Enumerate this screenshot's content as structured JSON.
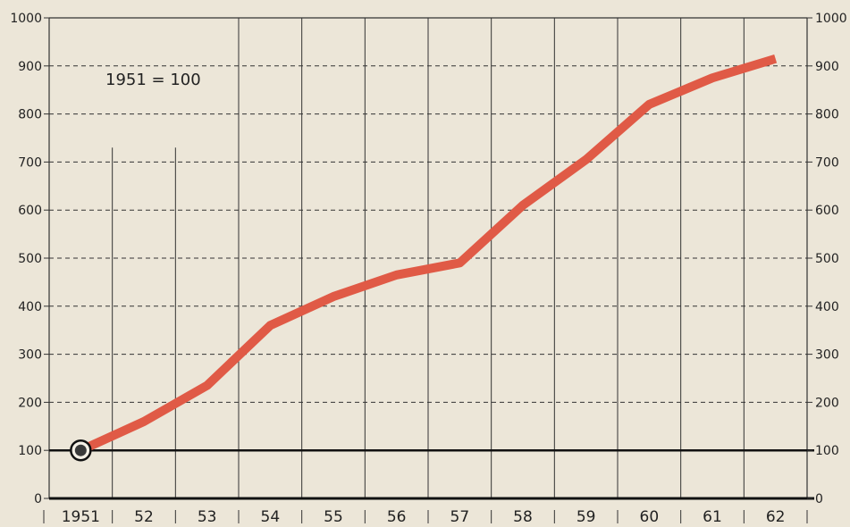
{
  "chart_data": {
    "type": "line",
    "annotation": "1951 = 100",
    "categories": [
      "1951",
      "52",
      "53",
      "54",
      "55",
      "56",
      "57",
      "58",
      "59",
      "60",
      "61",
      "62"
    ],
    "series": [
      {
        "values": [
          100,
          160,
          235,
          360,
          420,
          465,
          490,
          610,
          705,
          820,
          875,
          915
        ]
      }
    ],
    "y_ticks_left": [
      "0",
      "100",
      "200",
      "300",
      "400",
      "500",
      "600",
      "700",
      "800",
      "900",
      "1000"
    ],
    "y_ticks_right": [
      "0",
      "100",
      "200",
      "300",
      "400",
      "500",
      "600",
      "700",
      "800",
      "900",
      "1000"
    ],
    "ylim": [
      0,
      1000
    ],
    "grid": {
      "horizontal_dashed": true,
      "vertical_solid": true
    },
    "colors": {
      "line": "#e05a46",
      "background": "#ece6d8",
      "grid": "#333333",
      "baseline": "#111111",
      "marker": "#3a3a3a"
    }
  }
}
